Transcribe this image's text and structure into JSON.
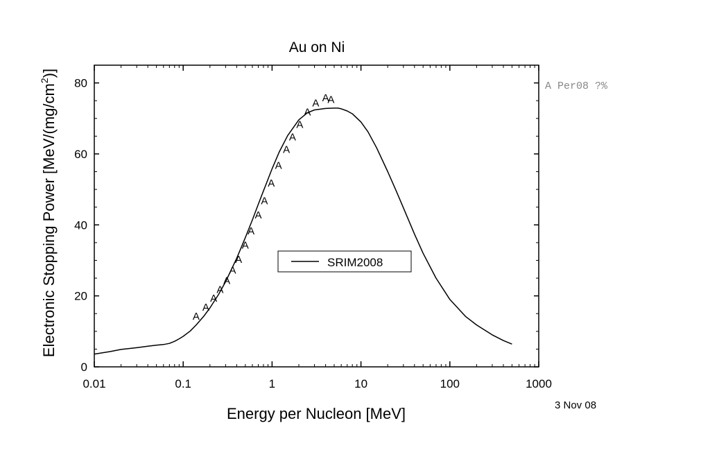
{
  "chart_data": {
    "type": "line",
    "title": "Au on Ni",
    "xlabel": "Energy per Nucleon [MeV]",
    "ylabel_main": "Electronic Stopping Power [MeV/(mg/cm",
    "ylabel_sup": "2",
    "ylabel_end": ")]",
    "xscale": "log",
    "xlim": [
      0.01,
      1000
    ],
    "ylim": [
      0,
      85
    ],
    "x_ticks": [
      0.01,
      0.1,
      1,
      10,
      100,
      1000
    ],
    "x_tick_labels": [
      "0.01",
      "0.1",
      "1",
      "10",
      "100",
      "1000"
    ],
    "y_ticks": [
      0,
      20,
      40,
      60,
      80
    ],
    "y_tick_labels": [
      "0",
      "20",
      "40",
      "60",
      "80"
    ],
    "date_label": "3 Nov 08",
    "legend": {
      "placement": "center",
      "label": "SRIM2008"
    },
    "side_legend": {
      "placement": "right of plot, top",
      "text": "A Per08 ?%"
    },
    "series": [
      {
        "name": "SRIM2008",
        "style": "line",
        "color": "#000000",
        "x": [
          0.01,
          0.015,
          0.02,
          0.03,
          0.04,
          0.05,
          0.06,
          0.07,
          0.08,
          0.09,
          0.1,
          0.12,
          0.14,
          0.17,
          0.2,
          0.25,
          0.3,
          0.4,
          0.5,
          0.6,
          0.7,
          0.8,
          1.0,
          1.2,
          1.5,
          2.0,
          2.5,
          3.0,
          4.0,
          5.0,
          5.5,
          6.0,
          7.0,
          8.0,
          10,
          12,
          15,
          20,
          25,
          30,
          40,
          50,
          70,
          100,
          150,
          200,
          300,
          400,
          500
        ],
        "y": [
          3.6,
          4.3,
          4.9,
          5.4,
          5.8,
          6.1,
          6.3,
          6.6,
          7.2,
          7.9,
          8.6,
          10.1,
          11.8,
          14.2,
          16.6,
          20.4,
          24.0,
          30.6,
          36.4,
          41.4,
          45.8,
          49.6,
          55.8,
          60.5,
          65.2,
          69.6,
          71.6,
          72.4,
          72.8,
          72.9,
          72.9,
          72.7,
          72.1,
          71.3,
          69.0,
          66.2,
          61.7,
          55.0,
          49.5,
          44.8,
          37.4,
          32.0,
          25.0,
          19.0,
          14.2,
          11.8,
          9.0,
          7.4,
          6.4
        ]
      },
      {
        "name": "Per08",
        "style": "marker",
        "marker": "A",
        "color": "#000000",
        "x": [
          0.14,
          0.18,
          0.22,
          0.26,
          0.31,
          0.36,
          0.42,
          0.5,
          0.58,
          0.7,
          0.82,
          0.98,
          1.18,
          1.45,
          1.7,
          2.05,
          2.5,
          3.1,
          4.0,
          4.6
        ],
        "y": [
          14.5,
          17.0,
          19.5,
          22.0,
          24.5,
          27.5,
          30.5,
          34.5,
          38.5,
          43.0,
          47.0,
          52.0,
          57.0,
          61.5,
          65.0,
          68.5,
          72.0,
          74.5,
          76.0,
          75.5
        ]
      }
    ]
  }
}
